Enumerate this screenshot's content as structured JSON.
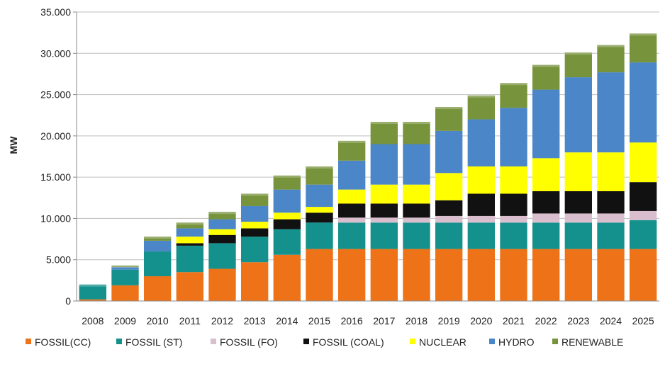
{
  "chart_data": {
    "type": "bar",
    "stacked": true,
    "ylabel": "MW",
    "ylim": [
      0,
      35000
    ],
    "ytick_labels": [
      "0",
      "5.000",
      "10.000",
      "15.000",
      "20.000",
      "25.000",
      "30.000",
      "35.000"
    ],
    "grid": true,
    "legend_position": "bottom",
    "categories": [
      "2008",
      "2009",
      "2010",
      "2011",
      "2012",
      "2013",
      "2014",
      "2015",
      "2016",
      "2017",
      "2018",
      "2019",
      "2020",
      "2021",
      "2022",
      "2023",
      "2024",
      "2025"
    ],
    "series": [
      {
        "name": "FOSSIL(CC)",
        "color": "#ee7318",
        "values": [
          200,
          1900,
          3000,
          3500,
          3900,
          4700,
          5600,
          6300,
          6300,
          6300,
          6300,
          6300,
          6300,
          6300,
          6300,
          6300,
          6300,
          6300
        ]
      },
      {
        "name": "FOSSIL (ST)",
        "color": "#14918c",
        "values": [
          1800,
          1900,
          3000,
          3200,
          3100,
          3100,
          3100,
          3200,
          3200,
          3200,
          3200,
          3200,
          3200,
          3200,
          3200,
          3200,
          3200,
          3500
        ]
      },
      {
        "name": "FOSSIL (FO)",
        "color": "#d9bfcd",
        "values": [
          0,
          0,
          0,
          0,
          0,
          0,
          0,
          0,
          600,
          600,
          600,
          800,
          800,
          800,
          1100,
          1100,
          1100,
          1100
        ]
      },
      {
        "name": "FOSSIL (COAL)",
        "color": "#111111",
        "values": [
          0,
          0,
          0,
          300,
          1000,
          1000,
          1200,
          1200,
          1700,
          1700,
          1700,
          1900,
          2700,
          2700,
          2700,
          2700,
          2700,
          3500
        ]
      },
      {
        "name": "NUCLEAR",
        "color": "#ffff00",
        "values": [
          0,
          0,
          0,
          800,
          700,
          800,
          800,
          700,
          1700,
          2300,
          2300,
          3300,
          3300,
          3300,
          4000,
          4700,
          4700,
          4800
        ]
      },
      {
        "name": "HYDRO",
        "color": "#4a86c8",
        "values": [
          0,
          300,
          1300,
          1000,
          1200,
          1900,
          2800,
          2700,
          3500,
          4900,
          4900,
          5100,
          5700,
          7100,
          8300,
          9100,
          9700,
          9700
        ]
      },
      {
        "name": "RENEWABLE",
        "color": "#77933c",
        "values": [
          0,
          200,
          500,
          700,
          900,
          1500,
          1700,
          2200,
          2400,
          2700,
          2700,
          2900,
          2900,
          3000,
          3000,
          3000,
          3300,
          3500
        ]
      }
    ]
  }
}
